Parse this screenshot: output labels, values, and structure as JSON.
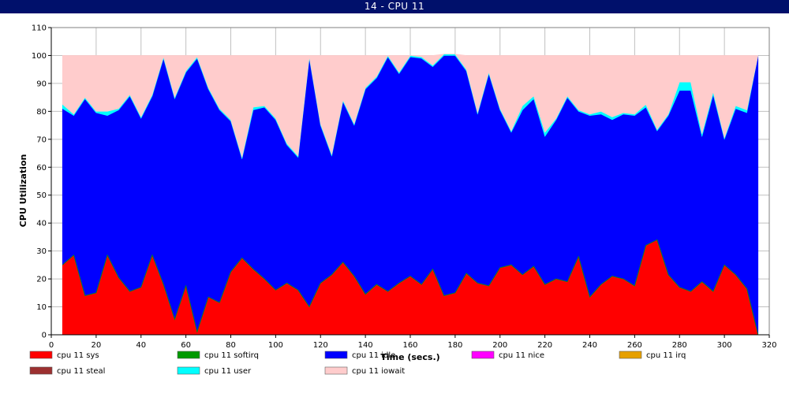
{
  "window": {
    "title": "14 - CPU 11"
  },
  "colors": {
    "background": "#ffffff",
    "title_bar": "#00106b",
    "grid": "#c0c0c0",
    "sys": "#ff0000",
    "softirq": "#009900",
    "idle": "#0000ff",
    "nice": "#ff00ff",
    "irq": "#e6a000",
    "steal": "#9c3030",
    "user": "#00ffff",
    "iowait": "#ffcccc"
  },
  "chart_data": {
    "type": "area",
    "stacked": true,
    "xlabel": "Time (secs.)",
    "ylabel": "CPU Utilization",
    "xlim": [
      0,
      320
    ],
    "ylim": [
      0,
      110
    ],
    "xticks": [
      0,
      20,
      40,
      60,
      80,
      100,
      120,
      140,
      160,
      180,
      200,
      220,
      240,
      260,
      280,
      300,
      320
    ],
    "yticks": [
      0,
      10,
      20,
      30,
      40,
      50,
      60,
      70,
      80,
      90,
      100,
      110
    ],
    "grid": true,
    "legend_position": "bottom",
    "x": [
      5,
      10,
      15,
      20,
      25,
      30,
      35,
      40,
      45,
      50,
      55,
      60,
      65,
      70,
      75,
      80,
      85,
      90,
      95,
      100,
      105,
      110,
      115,
      120,
      125,
      130,
      135,
      140,
      145,
      150,
      155,
      160,
      165,
      170,
      175,
      180,
      185,
      190,
      195,
      200,
      205,
      210,
      215,
      220,
      225,
      230,
      235,
      240,
      245,
      250,
      255,
      260,
      265,
      270,
      275,
      280,
      285,
      290,
      295,
      300,
      305,
      310,
      315
    ],
    "series": [
      {
        "key": "sys",
        "name": "cpu 11 sys",
        "values": [
          25,
          28.5,
          14,
          15,
          28.5,
          20.5,
          15.5,
          17,
          28.5,
          18,
          5.5,
          17.5,
          1,
          13.5,
          11.5,
          22.5,
          27.5,
          23.5,
          20,
          16,
          18.5,
          16,
          10,
          18.5,
          21.5,
          26,
          21,
          14.5,
          18,
          15.5,
          18.5,
          21,
          18,
          23.5,
          14,
          15,
          22,
          18.5,
          17.5,
          24,
          25,
          21.5,
          24.5,
          18,
          20,
          19,
          28,
          13.5,
          18,
          21,
          20,
          17.5,
          32,
          34,
          21.5,
          17,
          15.5,
          19,
          15.5,
          25,
          21.5,
          16.5,
          0
        ]
      },
      {
        "key": "softirq",
        "name": "cpu 11 softirq",
        "values": [
          0,
          0,
          0,
          0,
          0,
          0,
          0,
          0,
          0,
          0,
          0,
          0,
          0,
          0,
          0,
          0,
          0,
          0,
          0,
          0,
          0,
          0,
          0,
          0,
          0,
          0,
          0,
          0,
          0,
          0,
          0,
          0,
          0,
          0,
          0,
          0,
          0,
          0,
          0,
          0,
          0,
          0,
          0,
          0,
          0,
          0,
          0,
          0,
          0,
          0,
          0,
          0,
          0,
          0,
          0,
          0,
          0,
          0,
          0,
          0,
          0,
          0,
          0
        ]
      },
      {
        "key": "idle",
        "name": "cpu 11 idle",
        "values": [
          56,
          50,
          70.5,
          64.5,
          50,
          60,
          70,
          60.5,
          57,
          81,
          79,
          76.5,
          98,
          74.5,
          69,
          54,
          35.5,
          57,
          61.5,
          61,
          49.5,
          47.5,
          89,
          56.5,
          42.5,
          57.5,
          54,
          73.5,
          74,
          84,
          75,
          78.5,
          81,
          72.5,
          86,
          85,
          72.5,
          60.5,
          76,
          56.5,
          47.5,
          59,
          60,
          53,
          57,
          66,
          52,
          65,
          61,
          56,
          59,
          61,
          49.5,
          39,
          57,
          70.5,
          72,
          52,
          70.5,
          45,
          59.5,
          63,
          100
        ]
      },
      {
        "key": "nice",
        "name": "cpu 11 nice",
        "values": [
          0,
          0,
          0,
          0,
          0,
          0,
          0,
          0,
          0,
          0,
          0,
          0,
          0,
          0,
          0,
          0,
          0,
          0,
          0,
          0,
          0,
          0,
          0,
          0,
          0,
          0,
          0,
          0,
          0,
          0,
          0,
          0,
          0,
          0,
          0,
          0,
          0,
          0,
          0,
          0,
          0,
          0,
          0,
          0,
          0,
          0,
          0,
          0,
          0,
          0,
          0,
          0,
          0,
          0,
          0,
          0,
          0,
          0,
          0,
          0,
          0,
          0,
          0
        ]
      },
      {
        "key": "irq",
        "name": "cpu 11 irq",
        "values": [
          0,
          0,
          0,
          0,
          0,
          0,
          0,
          0,
          0,
          0,
          0,
          0,
          0,
          0,
          0,
          0,
          0,
          0,
          0,
          0,
          0,
          0,
          0,
          0,
          0,
          0,
          0,
          0,
          0,
          0,
          0,
          0,
          0,
          0,
          0,
          0,
          0,
          0,
          0,
          0,
          0,
          0,
          0,
          0,
          0,
          0,
          0,
          0,
          0,
          0,
          0,
          0,
          0,
          0,
          0,
          0,
          0,
          0,
          0,
          0,
          0,
          0,
          0
        ]
      },
      {
        "key": "steal",
        "name": "cpu 11 steal",
        "values": [
          0,
          0,
          0,
          0,
          0,
          0,
          0,
          0,
          0,
          0,
          0,
          0,
          0,
          0,
          0,
          0,
          0,
          0,
          0,
          0,
          0,
          0,
          0,
          0,
          0,
          0,
          0,
          0,
          0,
          0,
          0,
          0,
          0,
          0,
          0,
          0,
          0,
          0,
          0,
          0,
          0,
          0,
          0,
          0,
          0,
          0,
          0,
          0,
          0,
          0,
          0,
          0,
          0,
          0,
          0,
          0,
          0,
          0,
          0,
          0,
          0,
          0,
          0
        ]
      },
      {
        "key": "user",
        "name": "cpu 11 user",
        "values": [
          1.5,
          0.5,
          0.5,
          0.5,
          1.5,
          0.5,
          0.5,
          0.5,
          0.5,
          0.5,
          0.5,
          0.5,
          0.5,
          0.5,
          0.5,
          0.5,
          0.5,
          1,
          0.5,
          0.5,
          0.5,
          0.5,
          0.5,
          0.5,
          0.5,
          0.5,
          0.5,
          0.5,
          0.5,
          0.5,
          0.5,
          0.5,
          0.5,
          0.5,
          0.5,
          0.5,
          0.5,
          0.5,
          0.5,
          0.5,
          0.5,
          1.5,
          1,
          1.5,
          0.5,
          0.5,
          0.5,
          0.5,
          1,
          1,
          0.5,
          0.5,
          1,
          0.5,
          0.5,
          3,
          3,
          1,
          1,
          0.5,
          1,
          1,
          0
        ]
      },
      {
        "key": "iowait",
        "name": "cpu 11 iowait",
        "values": [
          17.5,
          21,
          15,
          20,
          20,
          19,
          14,
          22,
          14,
          0.5,
          15,
          5.5,
          0.5,
          11.5,
          19,
          23,
          36.5,
          18.5,
          18,
          22.5,
          31.5,
          36,
          0.5,
          24.5,
          35.5,
          16,
          24.5,
          11.5,
          7.5,
          0,
          6,
          0,
          0.5,
          3.5,
          0,
          0,
          5,
          20.5,
          6,
          19,
          27,
          18,
          14.5,
          27.5,
          22.5,
          14.5,
          19.5,
          21,
          20,
          22,
          20.5,
          21,
          17.5,
          26.5,
          21,
          9.5,
          9.5,
          28,
          13,
          29.5,
          18,
          19.5,
          0
        ]
      }
    ]
  },
  "legend": {
    "items": [
      {
        "key": "sys",
        "label": "cpu 11 sys"
      },
      {
        "key": "softirq",
        "label": "cpu 11 softirq"
      },
      {
        "key": "idle",
        "label": "cpu 11 idle"
      },
      {
        "key": "nice",
        "label": "cpu 11 nice"
      },
      {
        "key": "irq",
        "label": "cpu 11 irq"
      },
      {
        "key": "steal",
        "label": "cpu 11 steal"
      },
      {
        "key": "user",
        "label": "cpu 11 user"
      },
      {
        "key": "iowait",
        "label": "cpu 11 iowait"
      }
    ]
  }
}
